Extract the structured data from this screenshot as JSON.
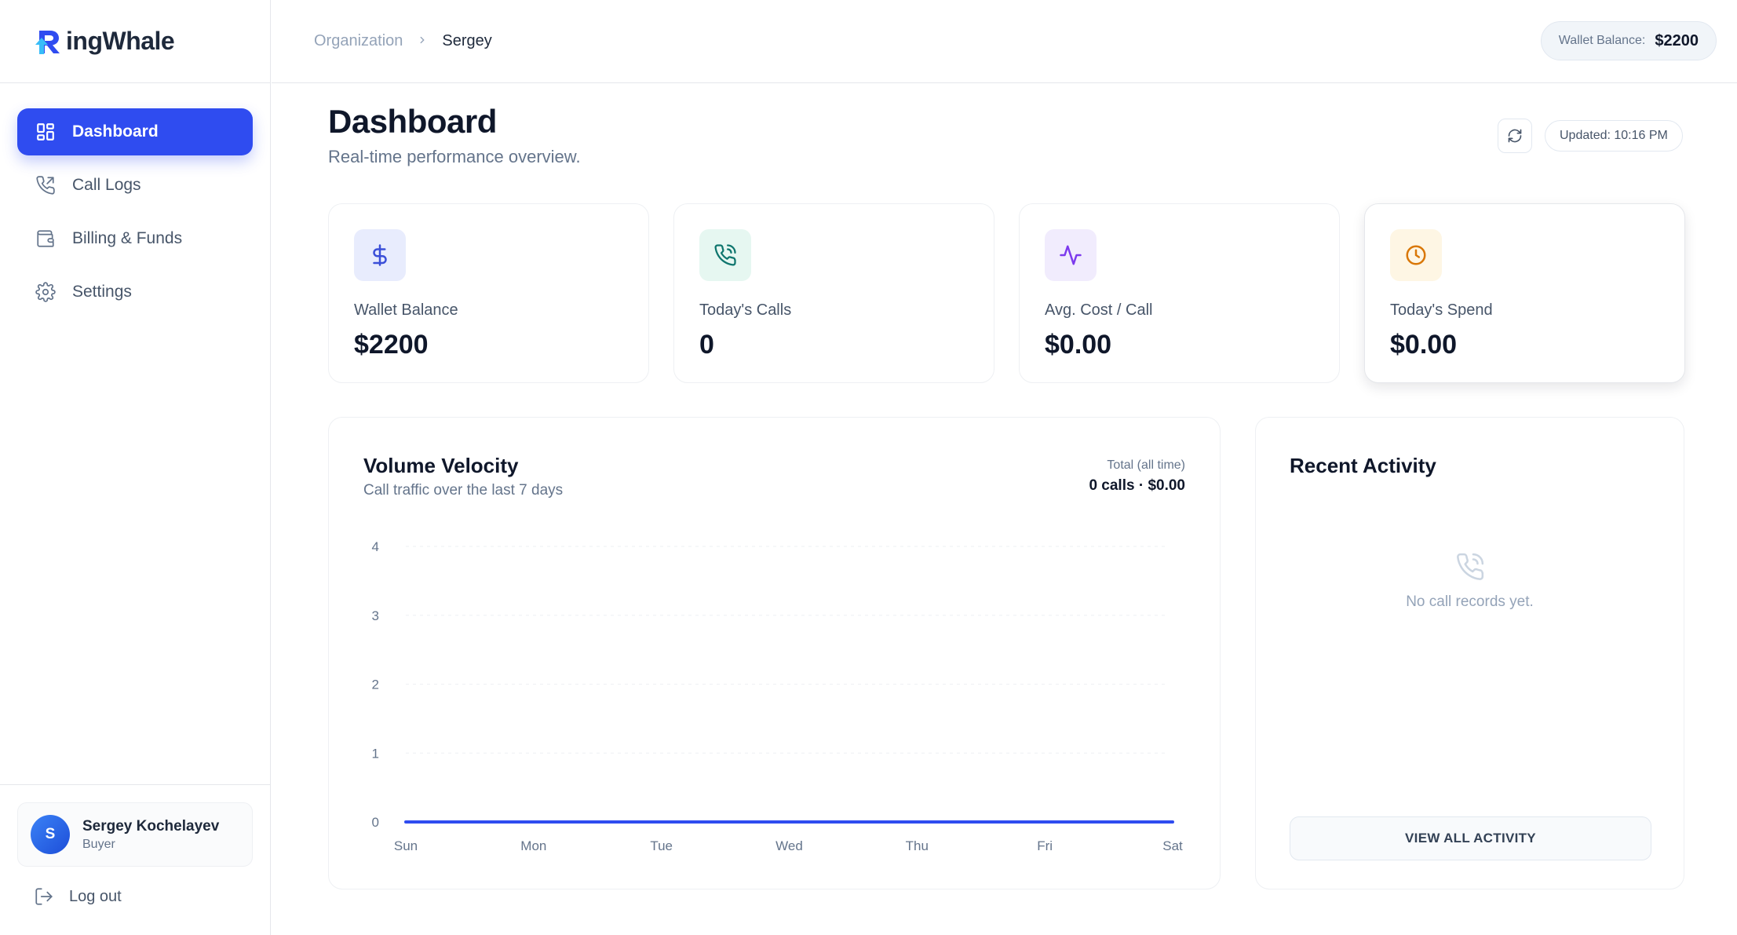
{
  "brand": {
    "name": "ingWhale",
    "logo_letter": "R"
  },
  "sidebar": {
    "items": [
      {
        "label": "Dashboard",
        "icon": "dashboard-grid-icon",
        "active": true
      },
      {
        "label": "Call Logs",
        "icon": "phone-log-icon",
        "active": false
      },
      {
        "label": "Billing & Funds",
        "icon": "wallet-icon",
        "active": false
      },
      {
        "label": "Settings",
        "icon": "gear-icon",
        "active": false
      }
    ],
    "user": {
      "initial": "S",
      "name": "Sergey Kochelayev",
      "role": "Buyer"
    },
    "logout_label": "Log out"
  },
  "topbar": {
    "breadcrumb": [
      "Organization",
      "Sergey"
    ],
    "wallet_label": "Wallet Balance:",
    "wallet_value": "$2200"
  },
  "page": {
    "title": "Dashboard",
    "subtitle": "Real-time performance overview.",
    "updated": "Updated: 10:16 PM"
  },
  "stats": [
    {
      "label": "Wallet Balance",
      "value": "$2200",
      "icon": "dollar-icon",
      "icon_color": "#3b4fd8",
      "icon_bg": "#e8ecfd"
    },
    {
      "label": "Today's Calls",
      "value": "0",
      "icon": "phone-call-icon",
      "icon_color": "#0f766e",
      "icon_bg": "#e6f7f1"
    },
    {
      "label": "Avg. Cost / Call",
      "value": "$0.00",
      "icon": "activity-icon",
      "icon_color": "#7c3aed",
      "icon_bg": "#f1ecfd"
    },
    {
      "label": "Today's Spend",
      "value": "$0.00",
      "icon": "clock-icon",
      "icon_color": "#d97706",
      "icon_bg": "#fef6e4"
    }
  ],
  "volume": {
    "title": "Volume Velocity",
    "subtitle": "Call traffic over the last 7 days",
    "total_label": "Total (all time)",
    "total_value": "0 calls · $0.00"
  },
  "chart_data": {
    "type": "line",
    "categories": [
      "Sun",
      "Mon",
      "Tue",
      "Wed",
      "Thu",
      "Fri",
      "Sat"
    ],
    "series": [
      {
        "values": [
          0,
          0,
          0,
          0,
          0,
          0,
          0
        ]
      }
    ],
    "yticks": [
      0,
      1,
      2,
      3,
      4
    ],
    "ylim": [
      0,
      4
    ],
    "grid": true,
    "line_color": "#2f4cf0"
  },
  "activity": {
    "title": "Recent Activity",
    "empty_text": "No call records yet.",
    "view_all_label": "VIEW ALL ACTIVITY"
  },
  "colors": {
    "accent": "#2f4cf0"
  }
}
